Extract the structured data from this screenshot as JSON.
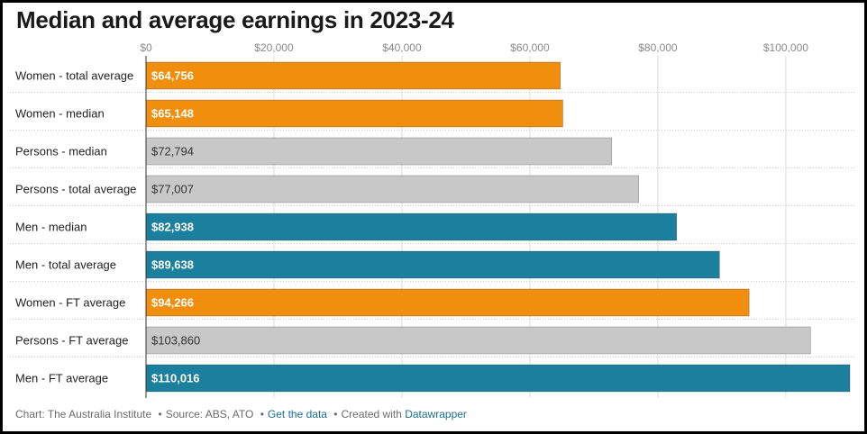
{
  "title": "Median and average earnings in 2023-24",
  "colors": {
    "women": "#f28e0d",
    "persons": "#c8c8c8",
    "men": "#1b7f9e",
    "label_on_dark": "#ffffff",
    "label_on_light": "#333333",
    "grid": "#dcdcdc"
  },
  "chart_data": {
    "type": "bar",
    "orientation": "horizontal",
    "title": "Median and average earnings in 2023-24",
    "xlabel": "",
    "ylabel": "",
    "xlim": [
      0,
      110016
    ],
    "x_ticks": [
      0,
      20000,
      40000,
      60000,
      80000,
      100000
    ],
    "x_tick_labels": [
      "$0",
      "$20,000",
      "$40,000",
      "$60,000",
      "$80,000",
      "$100,000"
    ],
    "grid": true,
    "categories": [
      "Women - total average",
      "Women - median",
      "Persons - median",
      "Persons - total average",
      "Men - median",
      "Men - total average",
      "Women - FT average",
      "Persons - FT average",
      "Men - FT average"
    ],
    "values": [
      64756,
      65148,
      72794,
      77007,
      82938,
      89638,
      94266,
      103860,
      110016
    ],
    "value_labels": [
      "$64,756",
      "$65,148",
      "$72,794",
      "$77,007",
      "$82,938",
      "$89,638",
      "$94,266",
      "$103,860",
      "$110,016"
    ],
    "groups": [
      "women",
      "women",
      "persons",
      "persons",
      "men",
      "men",
      "women",
      "persons",
      "men"
    ]
  },
  "footer": {
    "chart_credit": "Chart: The Australia Institute",
    "source": "Source: ABS, ATO",
    "get_data": "Get the data",
    "created_with": "Created with",
    "tool": "Datawrapper"
  }
}
